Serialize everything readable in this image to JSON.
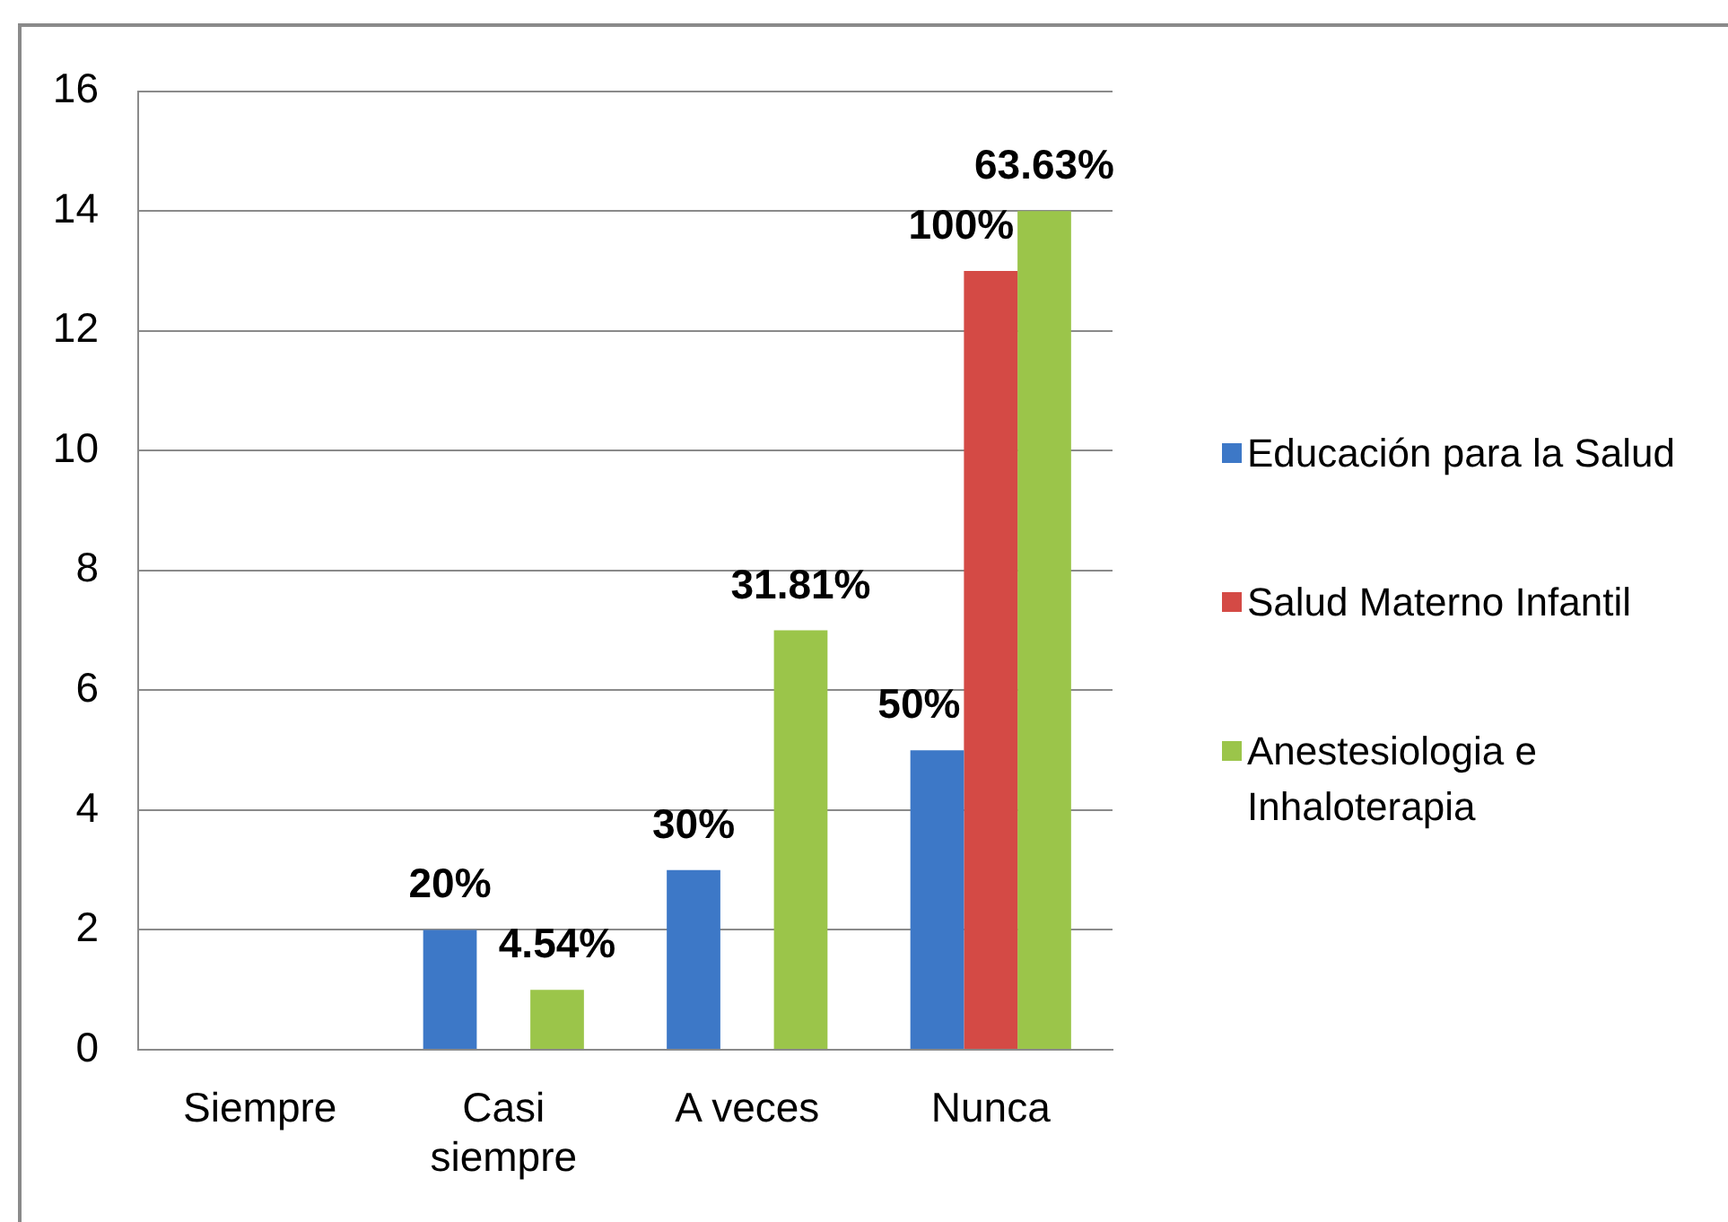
{
  "chart_data": {
    "type": "bar",
    "categories": [
      "Siempre",
      "Casi siempre",
      "A veces",
      "Nunca"
    ],
    "series": [
      {
        "name": "Educación para la Salud",
        "color": "#3d78c7",
        "values": [
          0,
          2,
          3,
          5
        ]
      },
      {
        "name": "Salud Materno Infantil",
        "color": "#d44a45",
        "values": [
          0,
          0,
          0,
          13
        ]
      },
      {
        "name": "Anestesiologia e Inhaloterapia",
        "color": "#9bc54a",
        "values": [
          0,
          1,
          7,
          14
        ]
      }
    ],
    "annotations": [
      "20%",
      "4.54%",
      "30%",
      "31.81%",
      "50%",
      "100%",
      "63.63%"
    ],
    "ylim": [
      0,
      16
    ],
    "yticks": [
      0,
      2,
      4,
      6,
      8,
      10,
      12,
      14,
      16
    ],
    "grid": "y",
    "legend": "right"
  }
}
